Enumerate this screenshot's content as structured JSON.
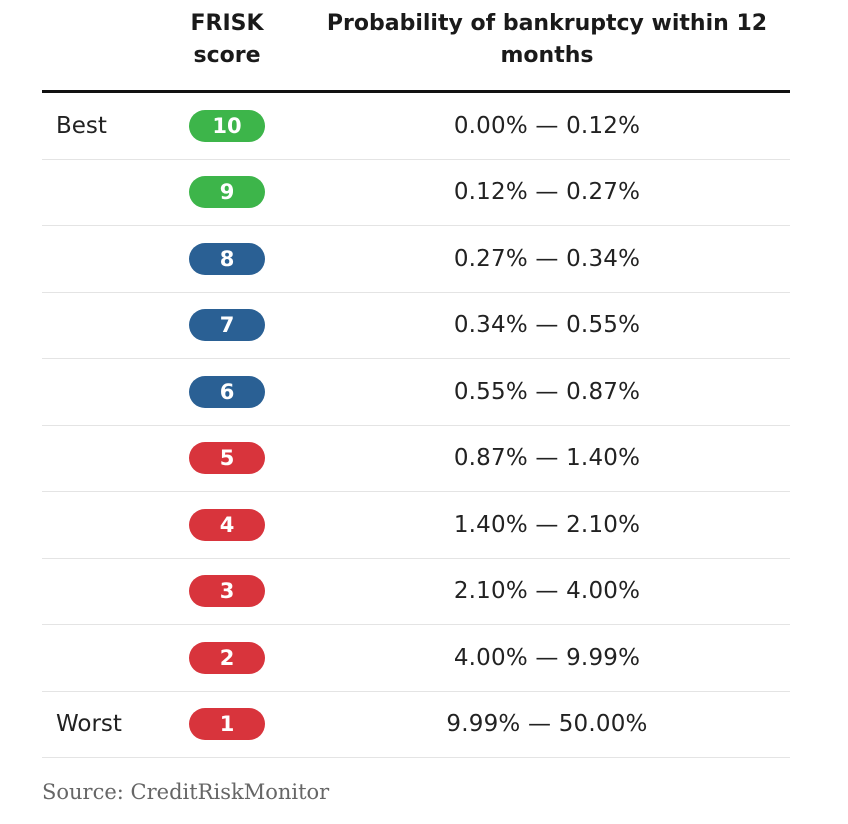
{
  "header": {
    "score_label": "FRISK score",
    "probability_label": "Probability of bankruptcy within 12 months"
  },
  "colors": {
    "green": "#3db54a",
    "blue": "#2a6094",
    "red": "#d8343c"
  },
  "rows": [
    {
      "label": "Best",
      "score": "10",
      "range": "0.00% — 0.12%",
      "color": "#3db54a"
    },
    {
      "label": "",
      "score": "9",
      "range": "0.12% — 0.27%",
      "color": "#3db54a"
    },
    {
      "label": "",
      "score": "8",
      "range": "0.27% — 0.34%",
      "color": "#2a6094"
    },
    {
      "label": "",
      "score": "7",
      "range": "0.34% — 0.55%",
      "color": "#2a6094"
    },
    {
      "label": "",
      "score": "6",
      "range": "0.55% — 0.87%",
      "color": "#2a6094"
    },
    {
      "label": "",
      "score": "5",
      "range": "0.87% — 1.40%",
      "color": "#d8343c"
    },
    {
      "label": "",
      "score": "4",
      "range": "1.40% — 2.10%",
      "color": "#d8343c"
    },
    {
      "label": "",
      "score": "3",
      "range": "2.10% — 4.00%",
      "color": "#d8343c"
    },
    {
      "label": "",
      "score": "2",
      "range": "4.00% — 9.99%",
      "color": "#d8343c"
    },
    {
      "label": "Worst",
      "score": "1",
      "range": "9.99% — 50.00%",
      "color": "#d8343c"
    }
  ],
  "source": "Source: CreditRiskMonitor"
}
